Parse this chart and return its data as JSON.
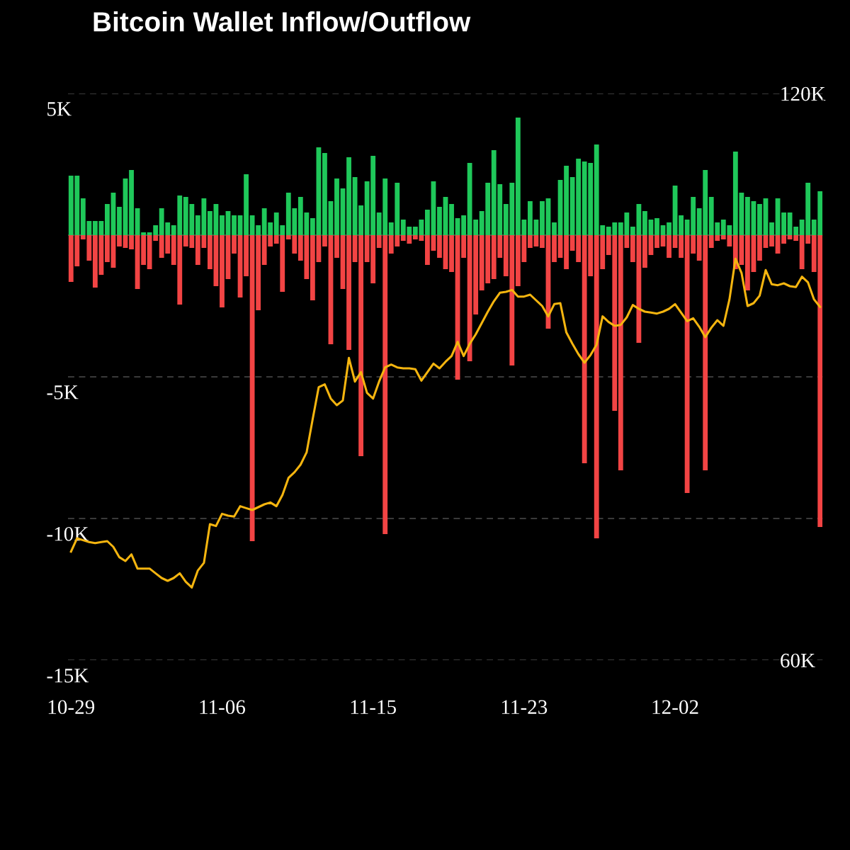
{
  "chart_data": {
    "type": "bar",
    "title": "Bitcoin Wallet Inflow/Outflow",
    "stacked": true,
    "grid": "y",
    "categories": [
      "10-29",
      null,
      null,
      null,
      null,
      null,
      null,
      null,
      null,
      null,
      null,
      null,
      null,
      null,
      null,
      null,
      null,
      null,
      null,
      null,
      null,
      null,
      null,
      null,
      null,
      "11-06",
      null,
      null,
      null,
      null,
      null,
      null,
      null,
      null,
      null,
      null,
      null,
      null,
      null,
      null,
      null,
      null,
      null,
      null,
      null,
      null,
      null,
      null,
      null,
      null,
      "11-15",
      null,
      null,
      null,
      null,
      null,
      null,
      null,
      null,
      null,
      null,
      null,
      null,
      null,
      null,
      null,
      null,
      null,
      null,
      null,
      null,
      null,
      null,
      null,
      null,
      "11-23",
      null,
      null,
      null,
      null,
      null,
      null,
      null,
      null,
      null,
      null,
      null,
      null,
      null,
      null,
      null,
      null,
      null,
      null,
      null,
      null,
      null,
      null,
      null,
      null,
      "12-02",
      null,
      null,
      null,
      null,
      null,
      null,
      null,
      null,
      null,
      null,
      null,
      null,
      null,
      null,
      null,
      null,
      null,
      null,
      null,
      null,
      null,
      null,
      null,
      null
    ],
    "ylim": [
      -15000,
      5000
    ],
    "yticks": [
      {
        "value": 5000,
        "label": "5K"
      },
      {
        "value": 0,
        "label": null
      },
      {
        "value": -5000,
        "label": "-5K"
      },
      {
        "value": -10000,
        "label": "-10K"
      },
      {
        "value": -15000,
        "label": "-15K"
      }
    ],
    "y2lim": [
      60000,
      120000
    ],
    "y2ticks": [
      {
        "value": 120000,
        "label": "120K"
      },
      {
        "value": 60000,
        "label": "60K"
      }
    ],
    "series": [
      {
        "color": "#1fc85a",
        "values": [
          2100,
          2100,
          1300,
          500,
          500,
          500,
          1100,
          1500,
          1000,
          2000,
          2300,
          950,
          100,
          100,
          350,
          950,
          450,
          350,
          1400,
          1350,
          1100,
          700,
          1300,
          850,
          1100,
          700,
          850,
          700,
          700,
          2150,
          700,
          350,
          950,
          450,
          800,
          350,
          1500,
          950,
          1350,
          800,
          600,
          3100,
          2900,
          1200,
          2000,
          1650,
          2750,
          2050,
          1050,
          1900,
          2800,
          800,
          2000,
          450,
          1850,
          550,
          300,
          300,
          550,
          900,
          1900,
          1000,
          1350,
          1100,
          600,
          700,
          2550,
          550,
          850,
          1850,
          3000,
          1800,
          1100,
          1850,
          4150,
          550,
          1200,
          550,
          1200,
          1300,
          450,
          1950,
          2450,
          2050,
          2700,
          2600,
          2550,
          3200,
          350,
          300,
          450,
          450,
          800,
          300,
          1100,
          850,
          550,
          600,
          350,
          450,
          1750,
          700,
          550,
          1350,
          950,
          2300,
          1350,
          450,
          550,
          350,
          2950,
          1500,
          1350,
          1200,
          1100,
          1300,
          450,
          1300,
          800,
          800,
          300,
          550,
          1850,
          550,
          1550
        ]
      },
      {
        "color": "#f24444",
        "values": [
          -1650,
          -1100,
          -150,
          -900,
          -1850,
          -1400,
          -950,
          -1150,
          -400,
          -450,
          -500,
          -1900,
          -1050,
          -1200,
          -200,
          -800,
          -650,
          -1050,
          -2450,
          -400,
          -450,
          -1050,
          -450,
          -1200,
          -1800,
          -2550,
          -1550,
          -650,
          -2200,
          -1450,
          -10800,
          -2650,
          -1050,
          -400,
          -300,
          -2000,
          -150,
          -650,
          -900,
          -1550,
          -2300,
          -950,
          -400,
          -3850,
          -800,
          -1900,
          -4050,
          -950,
          -7800,
          -950,
          -1700,
          -450,
          -10550,
          -650,
          -400,
          -200,
          -300,
          -150,
          -200,
          -1050,
          -550,
          -800,
          -1200,
          -1300,
          -5100,
          -800,
          -4450,
          -2800,
          -1950,
          -1700,
          -1550,
          -800,
          -1450,
          -4600,
          -1800,
          -950,
          -450,
          -400,
          -450,
          -3300,
          -950,
          -800,
          -1200,
          -550,
          -950,
          -8050,
          -1450,
          -10700,
          -1200,
          -700,
          -6200,
          -8300,
          -450,
          -950,
          -3800,
          -1150,
          -700,
          -450,
          -400,
          -800,
          -450,
          -800,
          -9100,
          -650,
          -900,
          -8300,
          -450,
          -200,
          -150,
          -400,
          -1200,
          -1050,
          -1950,
          -1300,
          -900,
          -450,
          -400,
          -650,
          -300,
          -150,
          -200,
          -1200,
          -300,
          -1300,
          -10300
        ]
      },
      {
        "type": "line",
        "axis": "y2",
        "color": "#f5b50f",
        "values": [
          71500,
          72900,
          72700,
          72500,
          72400,
          72500,
          72600,
          72000,
          70900,
          70500,
          71200,
          69700,
          69700,
          69700,
          69200,
          68700,
          68400,
          68700,
          69200,
          68300,
          67700,
          69500,
          70300,
          74400,
          74200,
          75500,
          75300,
          75200,
          76300,
          76100,
          75900,
          76200,
          76500,
          76700,
          76300,
          77500,
          79300,
          79900,
          80700,
          82000,
          85500,
          88900,
          89200,
          87700,
          87000,
          87500,
          92000,
          89500,
          90500,
          88300,
          87700,
          89500,
          91000,
          91300,
          91000,
          90900,
          90900,
          90800,
          89600,
          90500,
          91400,
          90900,
          91600,
          92200,
          93700,
          92200,
          93500,
          94500,
          95700,
          96900,
          98000,
          98900,
          99000,
          99200,
          98500,
          98500,
          98700,
          98100,
          97500,
          96400,
          97700,
          97800,
          94700,
          93500,
          92400,
          91500,
          92300,
          93400,
          96400,
          95800,
          95400,
          95500,
          96300,
          97600,
          97200,
          96900,
          96800,
          96700,
          96900,
          97200,
          97700,
          96800,
          95900,
          96200,
          95300,
          94200,
          95200,
          96000,
          95400,
          98200,
          102500,
          101000,
          97500,
          97800,
          98600,
          101300,
          99800,
          99700,
          99900,
          99600,
          99500,
          100600,
          100000,
          98200,
          97400
        ]
      }
    ]
  }
}
